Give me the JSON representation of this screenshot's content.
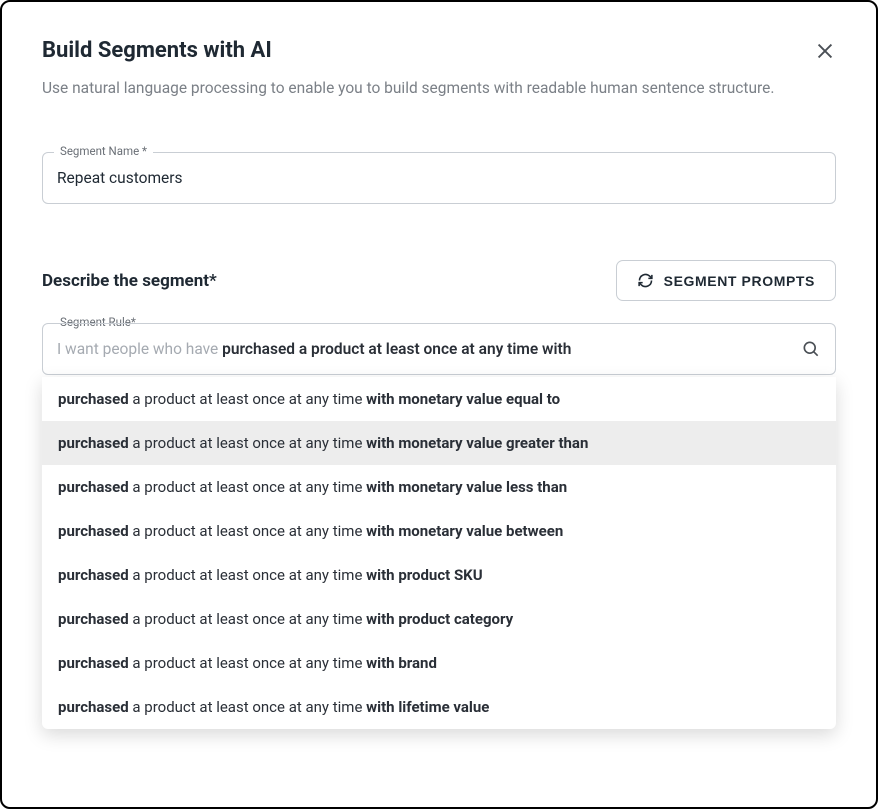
{
  "modal": {
    "title": "Build Segments with AI",
    "subtitle": "Use natural language processing to enable you to build segments with readable human sentence structure."
  },
  "segmentName": {
    "label": "Segment Name *",
    "value": "Repeat customers"
  },
  "describe": {
    "label": "Describe the segment*",
    "promptsButton": "SEGMENT PROMPTS"
  },
  "rule": {
    "label": "Segment Rule*",
    "prefix": "I want people who have ",
    "typed": "purchased a product at least once at any time with"
  },
  "suggestions": [
    {
      "lead": "purchased",
      "mid": " a product at least once at any time ",
      "tail": "with monetary value equal to",
      "hovered": false
    },
    {
      "lead": "purchased",
      "mid": " a product at least once at any time ",
      "tail": "with monetary value greater than",
      "hovered": true
    },
    {
      "lead": "purchased",
      "mid": " a product at least once at any time ",
      "tail": "with monetary value less than",
      "hovered": false
    },
    {
      "lead": "purchased",
      "mid": " a product at least once at any time ",
      "tail": "with monetary value between",
      "hovered": false
    },
    {
      "lead": "purchased",
      "mid": " a product at least once at any time ",
      "tail": "with product SKU",
      "hovered": false
    },
    {
      "lead": "purchased",
      "mid": " a product at least once at any time ",
      "tail": "with product category",
      "hovered": false
    },
    {
      "lead": "purchased",
      "mid": " a product at least once at any time ",
      "tail": "with brand",
      "hovered": false
    },
    {
      "lead": "purchased",
      "mid": " a product at least once at any time ",
      "tail": "with lifetime value",
      "hovered": false
    }
  ],
  "colors": {
    "border": "#c9ced4",
    "textPrimary": "#1f2933",
    "textMuted": "#7b8087",
    "textFaded": "#a5aab1",
    "hoverBg": "#ededed"
  }
}
